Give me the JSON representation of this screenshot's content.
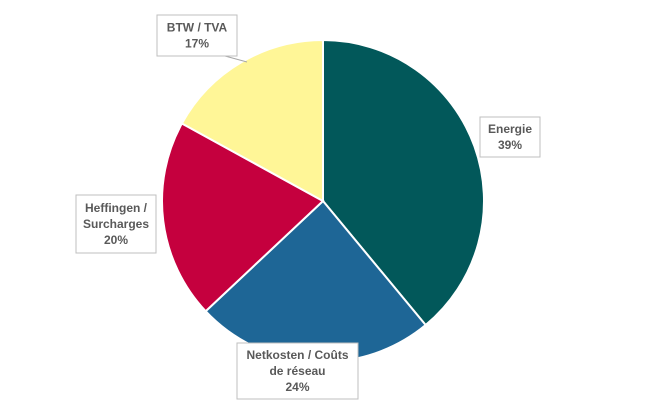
{
  "chart_data": {
    "type": "pie",
    "start_angle_deg": 0,
    "direction": "clockwise",
    "slices": [
      {
        "label_lines": [
          "Energie"
        ],
        "percent_label": "39%",
        "value": 39,
        "color": "#02585a"
      },
      {
        "label_lines": [
          "Netkosten / Coûts",
          "de réseau"
        ],
        "percent_label": "24%",
        "value": 24,
        "color": "#1e6696"
      },
      {
        "label_lines": [
          "Heffingen /",
          "Surcharges"
        ],
        "percent_label": "20%",
        "value": 20,
        "color": "#c5003e"
      },
      {
        "label_lines": [
          "BTW / TVA"
        ],
        "percent_label": "17%",
        "value": 17,
        "color": "#fff697"
      }
    ]
  }
}
